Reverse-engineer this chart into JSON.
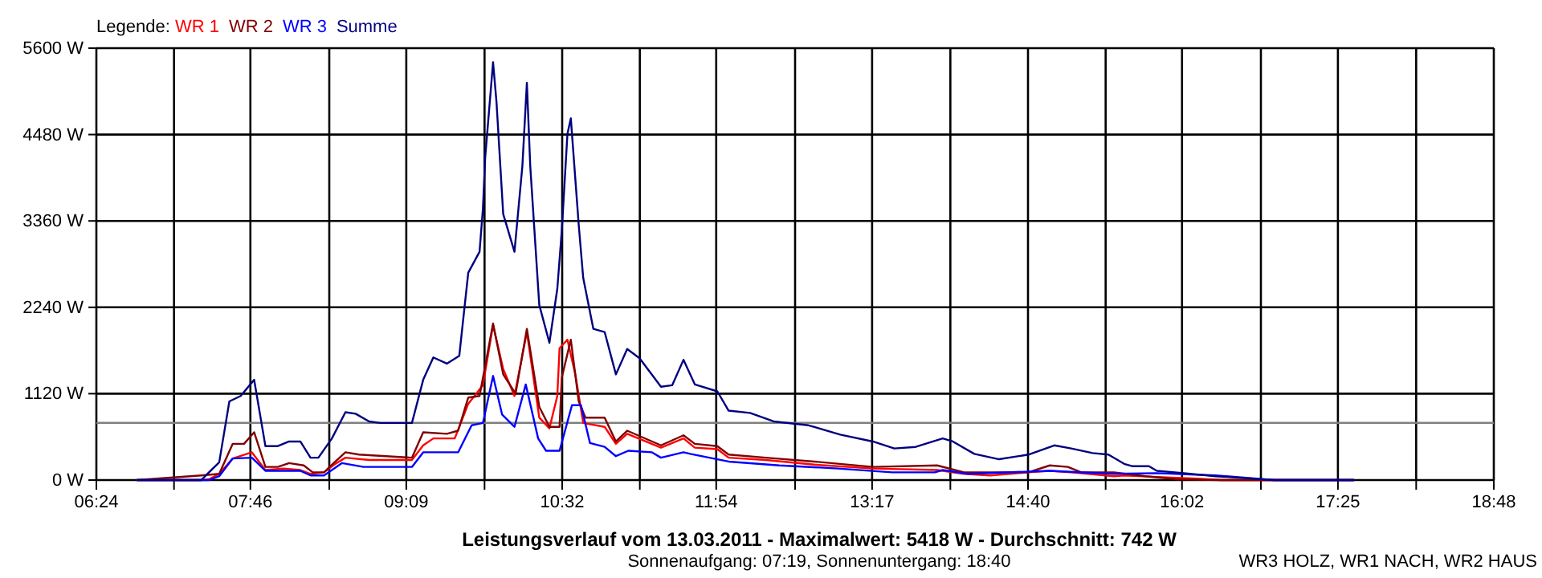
{
  "chart_data": {
    "type": "line",
    "xlabel": "Leistungsverlauf vom 13.03.2011 - Maximalwert: 5418 W - Durchschnitt: 742 W",
    "annotations": [
      "Sonnenaufgang: 07:19, Sonnenuntergang: 18:40",
      "WR3 HOLZ, WR1 NACH, WR2 HAUS"
    ],
    "legend_title": "Legende:",
    "legend": "top left",
    "grid": true,
    "marker": "none",
    "line_style": "solid",
    "xlim": [
      6.4,
      18.8
    ],
    "xticks": [
      {
        "value": 6.4,
        "label": "06:24"
      },
      {
        "value": 7.0889,
        "label": null
      },
      {
        "value": 7.7667,
        "label": "07:46"
      },
      {
        "value": 8.4667,
        "label": null
      },
      {
        "value": 9.15,
        "label": "09:09"
      },
      {
        "value": 9.8444,
        "label": null
      },
      {
        "value": 10.5333,
        "label": "10:32"
      },
      {
        "value": 11.2222,
        "label": null
      },
      {
        "value": 11.9,
        "label": "11:54"
      },
      {
        "value": 12.6,
        "label": null
      },
      {
        "value": 13.2833,
        "label": "13:17"
      },
      {
        "value": 13.9778,
        "label": null
      },
      {
        "value": 14.6667,
        "label": "14:40"
      },
      {
        "value": 15.3556,
        "label": null
      },
      {
        "value": 16.0333,
        "label": "16:02"
      },
      {
        "value": 16.7333,
        "label": null
      },
      {
        "value": 17.4167,
        "label": "17:25"
      },
      {
        "value": 18.1111,
        "label": null
      },
      {
        "value": 18.8,
        "label": "18:48"
      }
    ],
    "ylim": [
      0,
      5600
    ],
    "yticks": [
      {
        "value": 0,
        "label": "0 W"
      },
      {
        "value": 1120,
        "label": "1120 W"
      },
      {
        "value": 2240,
        "label": "2240 W"
      },
      {
        "value": 3360,
        "label": "3360 W"
      },
      {
        "value": 4480,
        "label": "4480 W"
      },
      {
        "value": 5600,
        "label": "5600 W"
      }
    ],
    "ref_lines": [
      {
        "axis": "y",
        "value": 742,
        "label": null,
        "color": "#808080"
      }
    ],
    "series": [
      {
        "name": "WR 1",
        "color": "#ff0000",
        "x": [
          6.76,
          7.33,
          7.4,
          7.49,
          7.61,
          7.78,
          7.9,
          8.06,
          8.21,
          8.3,
          8.42,
          8.51,
          8.61,
          8.82,
          9.2,
          9.3,
          9.39,
          9.58,
          9.7,
          9.83,
          9.92,
          10.01,
          10.11,
          10.22,
          10.33,
          10.42,
          10.49,
          10.51,
          10.58,
          10.65,
          10.72,
          10.91,
          11.01,
          11.11,
          11.41,
          11.61,
          11.71,
          11.91,
          12.01,
          12.34,
          12.77,
          13.29,
          13.86,
          14.1,
          14.33,
          14.67,
          14.86,
          15.05,
          15.43,
          15.52,
          15.81,
          16.16,
          16.38,
          17.56
        ],
        "values": [
          0,
          0,
          10,
          80,
          280,
          360,
          130,
          150,
          130,
          80,
          100,
          200,
          290,
          260,
          260,
          450,
          540,
          540,
          990,
          1230,
          2010,
          1440,
          1090,
          1920,
          810,
          670,
          1090,
          1710,
          1820,
          1370,
          740,
          690,
          470,
          600,
          420,
          540,
          420,
          400,
          290,
          260,
          200,
          150,
          130,
          80,
          60,
          100,
          120,
          100,
          50,
          60,
          40,
          20,
          0,
          0
        ]
      },
      {
        "name": "WR 2",
        "color": "#800000",
        "x": [
          6.76,
          7.33,
          7.49,
          7.61,
          7.71,
          7.8,
          7.9,
          8.01,
          8.11,
          8.24,
          8.32,
          8.42,
          8.49,
          8.61,
          8.73,
          9.2,
          9.3,
          9.51,
          9.61,
          9.7,
          9.8,
          9.92,
          10.01,
          10.12,
          10.22,
          10.33,
          10.42,
          10.51,
          10.53,
          10.61,
          10.68,
          10.74,
          10.91,
          11.01,
          11.11,
          11.41,
          11.61,
          11.71,
          11.91,
          12.01,
          12.34,
          12.77,
          13.29,
          13.86,
          14.1,
          14.67,
          14.86,
          15.02,
          15.14,
          15.43,
          15.71,
          15.99,
          16.38,
          17.56
        ],
        "values": [
          0,
          60,
          80,
          470,
          470,
          620,
          170,
          170,
          220,
          190,
          100,
          100,
          200,
          360,
          330,
          290,
          620,
          600,
          640,
          1070,
          1090,
          2030,
          1370,
          1120,
          1960,
          950,
          690,
          690,
          1330,
          1820,
          1020,
          810,
          810,
          500,
          640,
          450,
          580,
          470,
          440,
          330,
          290,
          240,
          170,
          190,
          100,
          100,
          190,
          170,
          100,
          100,
          50,
          10,
          0,
          0
        ]
      },
      {
        "name": "WR 3",
        "color": "#0000ff",
        "x": [
          6.76,
          7.4,
          7.49,
          7.61,
          7.78,
          7.9,
          8.21,
          8.3,
          8.42,
          8.49,
          8.58,
          8.77,
          9.2,
          9.3,
          9.61,
          9.73,
          9.83,
          9.92,
          10.0,
          10.11,
          10.21,
          10.32,
          10.39,
          10.51,
          10.62,
          10.7,
          10.78,
          10.91,
          11.01,
          11.12,
          11.33,
          11.41,
          11.61,
          11.67,
          11.91,
          12.01,
          12.46,
          12.98,
          13.46,
          13.84,
          13.91,
          14.14,
          14.86,
          15.43,
          15.81,
          16.33,
          16.85,
          17.56
        ],
        "values": [
          0,
          0,
          50,
          280,
          290,
          120,
          120,
          60,
          60,
          130,
          220,
          170,
          170,
          360,
          360,
          710,
          740,
          1350,
          850,
          690,
          1240,
          540,
          380,
          380,
          970,
          970,
          480,
          430,
          310,
          380,
          360,
          290,
          360,
          340,
          270,
          240,
          190,
          150,
          100,
          100,
          130,
          80,
          120,
          80,
          90,
          60,
          0,
          0
        ]
      },
      {
        "name": "Summe",
        "color": "#000080",
        "x": [
          6.76,
          7.33,
          7.49,
          7.58,
          7.68,
          7.8,
          7.9,
          8.01,
          8.11,
          8.21,
          8.3,
          8.37,
          8.49,
          8.61,
          8.7,
          8.82,
          8.92,
          9.04,
          9.2,
          9.3,
          9.39,
          9.51,
          9.62,
          9.7,
          9.8,
          9.83,
          9.85,
          9.92,
          9.95,
          10.01,
          10.11,
          10.18,
          10.22,
          10.25,
          10.33,
          10.42,
          10.49,
          10.53,
          10.58,
          10.61,
          10.68,
          10.72,
          10.81,
          10.91,
          11.01,
          11.11,
          11.22,
          11.41,
          11.51,
          11.61,
          11.71,
          11.91,
          12.01,
          12.2,
          12.41,
          12.72,
          13.0,
          13.29,
          13.48,
          13.67,
          13.91,
          14.0,
          14.19,
          14.41,
          14.67,
          14.9,
          15.05,
          15.24,
          15.38,
          15.52,
          15.59,
          15.74,
          15.81,
          16.05,
          16.33,
          16.85,
          17.56
        ],
        "values": [
          0,
          0,
          230,
          1020,
          1090,
          1300,
          440,
          440,
          500,
          500,
          290,
          290,
          540,
          880,
          860,
          760,
          740,
          740,
          740,
          1300,
          1590,
          1510,
          1610,
          2690,
          2960,
          3520,
          4180,
          5418,
          4910,
          3450,
          2960,
          4070,
          5150,
          4070,
          2270,
          1780,
          2480,
          3240,
          4490,
          4690,
          3310,
          2620,
          1960,
          1920,
          1370,
          1700,
          1580,
          1210,
          1230,
          1560,
          1240,
          1150,
          900,
          870,
          760,
          710,
          590,
          500,
          410,
          430,
          540,
          500,
          340,
          270,
          330,
          450,
          410,
          350,
          330,
          210,
          180,
          180,
          120,
          90,
          50,
          0,
          0
        ]
      }
    ]
  }
}
